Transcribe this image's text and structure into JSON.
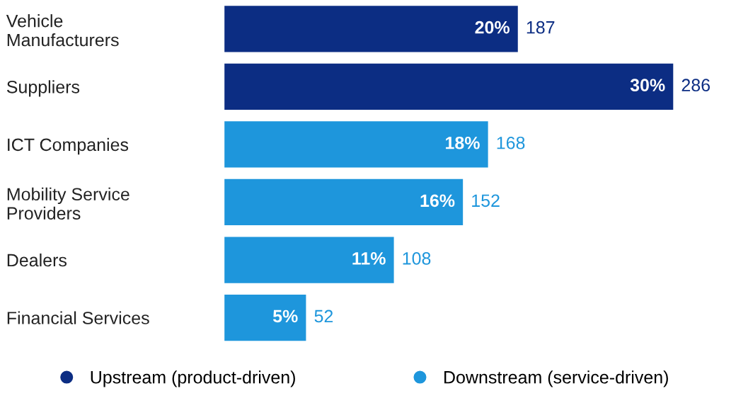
{
  "chart_data": {
    "type": "bar",
    "orientation": "horizontal",
    "categories": [
      "Vehicle\nManufacturers",
      "Suppliers",
      "ICT Companies",
      "Mobility Service\nProviders",
      "Dealers",
      "Financial Services"
    ],
    "series": [
      {
        "name": "Upstream (product-driven)",
        "color": "#0c2d83",
        "values": [
          187,
          286,
          null,
          null,
          null,
          null
        ]
      },
      {
        "name": "Downstream (service-driven)",
        "color": "#1e96dc",
        "values": [
          null,
          null,
          168,
          152,
          108,
          52
        ]
      }
    ],
    "data_labels": true,
    "legend": "bottom",
    "grid": false,
    "annotations": [
      {
        "text": "20%",
        "x": 187,
        "y": "Vehicle\nManufacturers"
      },
      {
        "text": "30%",
        "x": 286,
        "y": "Suppliers"
      },
      {
        "text": "18%",
        "x": 168,
        "y": "ICT Companies"
      },
      {
        "text": "16%",
        "x": 152,
        "y": "Mobility Service\nProviders"
      },
      {
        "text": "11%",
        "x": 108,
        "y": "Dealers"
      },
      {
        "text": "5%",
        "x": 52,
        "y": "Financial Services"
      }
    ]
  }
}
